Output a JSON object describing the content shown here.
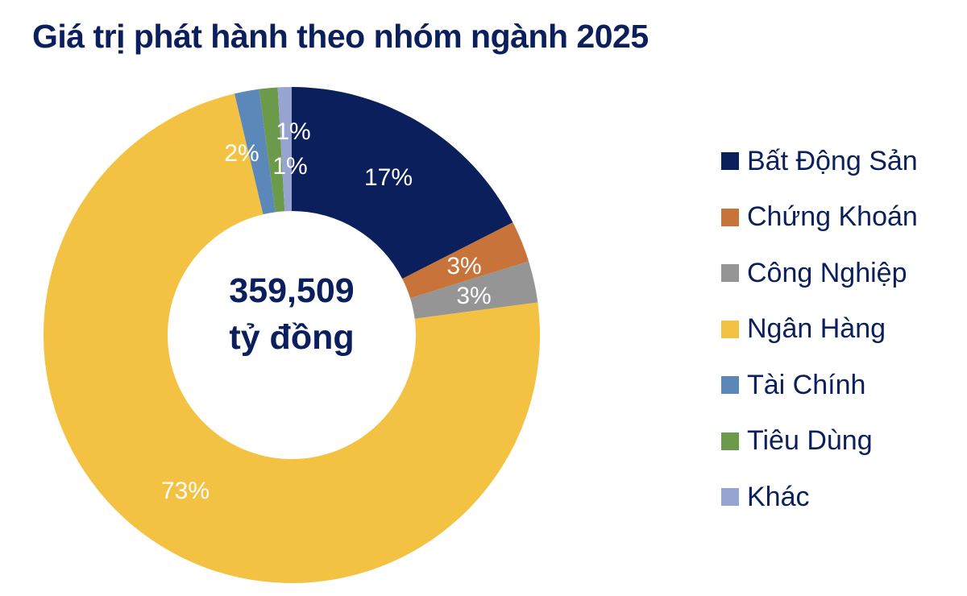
{
  "title": "Giá trị phát hành theo nhóm ngành 2025",
  "center": {
    "value": "359,509",
    "unit": "tỷ đồng"
  },
  "legend": [
    {
      "label": "Bất Động Sản",
      "color": "#0b1f5c"
    },
    {
      "label": "Chứng Khoán",
      "color": "#c8733a"
    },
    {
      "label": "Công Nghiệp",
      "color": "#959595"
    },
    {
      "label": "Ngân Hàng",
      "color": "#f3c243"
    },
    {
      "label": "Tài Chính",
      "color": "#5b87b9"
    },
    {
      "label": "Tiêu Dùng",
      "color": "#6b9a4b"
    },
    {
      "label": "Khác",
      "color": "#97a4d2"
    }
  ],
  "chart_data": {
    "type": "pie",
    "subtype": "donut",
    "title": "Giá trị phát hành theo nhóm ngành 2025",
    "center_label": "359,509 tỷ đồng",
    "total": 359509,
    "unit": "tỷ đồng",
    "categories": [
      "Bất Động Sản",
      "Chứng Khoán",
      "Công Nghiệp",
      "Ngân Hàng",
      "Tài Chính",
      "Tiêu Dùng",
      "Khác"
    ],
    "values": [
      17.5,
      2.7,
      2.7,
      73.4,
      1.6,
      1.2,
      0.9
    ],
    "data_labels": [
      "17%",
      "3%",
      "3%",
      "73%",
      "2%",
      "1%",
      "1%"
    ],
    "colors": [
      "#0b1f5c",
      "#c8733a",
      "#959595",
      "#f3c243",
      "#5b87b9",
      "#6b9a4b",
      "#97a4d2"
    ],
    "legend_position": "right",
    "start_angle_deg": 0,
    "direction": "clockwise"
  }
}
